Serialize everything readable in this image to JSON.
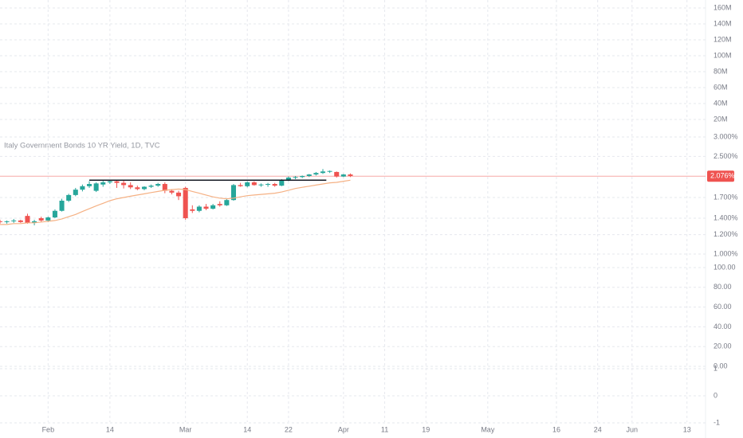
{
  "chart_data": {
    "type": "candlestick",
    "title": "Italy Government Bonds 10 YR Yield, 1D, TVC",
    "x": [
      -7,
      -6,
      -5,
      -4,
      -3,
      -2,
      -1,
      0,
      1,
      2,
      3,
      4,
      5,
      6,
      7,
      8,
      9,
      10,
      11,
      12,
      13,
      14,
      15,
      16,
      17,
      18,
      19,
      20,
      21,
      22,
      23,
      24,
      25,
      26,
      27,
      28,
      29,
      30,
      31,
      32,
      33,
      34,
      35,
      36,
      37,
      38,
      39,
      40,
      41,
      42,
      43,
      44
    ],
    "open": [
      1.36,
      1.35,
      1.36,
      1.37,
      1.43,
      1.34,
      1.4,
      1.37,
      1.41,
      1.5,
      1.65,
      1.74,
      1.83,
      1.89,
      1.81,
      1.92,
      1.96,
      1.98,
      1.95,
      1.91,
      1.87,
      1.84,
      1.88,
      1.9,
      1.93,
      1.81,
      1.78,
      1.86,
      1.52,
      1.5,
      1.56,
      1.53,
      1.6,
      1.58,
      1.66,
      1.91,
      1.89,
      1.96,
      1.91,
      1.92,
      1.93,
      1.9,
      2.0,
      2.05,
      2.06,
      2.08,
      2.11,
      2.14,
      2.17,
      2.16,
      2.07,
      2.11
    ],
    "high": [
      1.38,
      1.37,
      1.39,
      1.38,
      1.46,
      1.38,
      1.42,
      1.42,
      1.52,
      1.68,
      1.76,
      1.86,
      1.92,
      1.98,
      1.96,
      1.99,
      2.0,
      2.01,
      1.99,
      1.96,
      1.9,
      1.89,
      1.92,
      1.95,
      1.96,
      1.84,
      1.81,
      1.88,
      1.58,
      1.58,
      1.6,
      1.6,
      1.64,
      1.68,
      1.93,
      1.95,
      1.98,
      1.98,
      1.94,
      1.95,
      1.95,
      2.02,
      2.07,
      2.08,
      2.09,
      2.12,
      2.16,
      2.22,
      2.19,
      2.17,
      2.12,
      2.13
    ],
    "low": [
      1.33,
      1.33,
      1.34,
      1.34,
      1.33,
      1.31,
      1.35,
      1.35,
      1.4,
      1.49,
      1.63,
      1.72,
      1.8,
      1.86,
      1.79,
      1.88,
      1.93,
      1.86,
      1.85,
      1.84,
      1.82,
      1.82,
      1.86,
      1.88,
      1.77,
      1.75,
      1.66,
      1.38,
      1.47,
      1.48,
      1.51,
      1.52,
      1.56,
      1.57,
      1.65,
      1.88,
      1.87,
      1.9,
      1.88,
      1.88,
      1.88,
      1.89,
      1.98,
      2.02,
      2.04,
      2.06,
      2.09,
      2.12,
      2.14,
      2.05,
      2.06,
      2.06
    ],
    "close": [
      1.35,
      1.36,
      1.37,
      1.35,
      1.34,
      1.36,
      1.37,
      1.41,
      1.5,
      1.65,
      1.74,
      1.83,
      1.89,
      1.93,
      1.94,
      1.96,
      1.98,
      1.95,
      1.91,
      1.87,
      1.84,
      1.88,
      1.9,
      1.93,
      1.81,
      1.78,
      1.72,
      1.4,
      1.5,
      1.56,
      1.53,
      1.58,
      1.58,
      1.66,
      1.91,
      1.89,
      1.96,
      1.91,
      1.92,
      1.93,
      1.9,
      2.0,
      2.05,
      2.06,
      2.08,
      2.11,
      2.14,
      2.17,
      2.18,
      2.07,
      2.11,
      2.08
    ],
    "up_color": "#26a69a",
    "down_color": "#ef5350",
    "moving_average": {
      "color": "#f5b184",
      "values": [
        1.32,
        1.32,
        1.33,
        1.33,
        1.34,
        1.34,
        1.35,
        1.36,
        1.37,
        1.39,
        1.42,
        1.45,
        1.49,
        1.53,
        1.57,
        1.61,
        1.65,
        1.68,
        1.7,
        1.72,
        1.74,
        1.76,
        1.78,
        1.8,
        1.82,
        1.83,
        1.84,
        1.83,
        1.8,
        1.77,
        1.74,
        1.71,
        1.69,
        1.68,
        1.69,
        1.71,
        1.73,
        1.74,
        1.75,
        1.76,
        1.77,
        1.79,
        1.82,
        1.85,
        1.87,
        1.89,
        1.91,
        1.93,
        1.95,
        1.96,
        1.98,
        2.0
      ]
    },
    "level": {
      "value": 2.0,
      "x": [
        6,
        40.5
      ],
      "color": "#131722"
    },
    "current_price": {
      "value": 2.076,
      "label": "2.076%",
      "color": "#ef5350"
    },
    "xlim": [
      -7,
      95.7
    ],
    "xticks": [
      {
        "value": 0,
        "label": "Feb"
      },
      {
        "value": 9,
        "label": "14"
      },
      {
        "value": 20,
        "label": "Mar"
      },
      {
        "value": 29,
        "label": "14"
      },
      {
        "value": 35,
        "label": "22"
      },
      {
        "value": 43,
        "label": "Apr"
      },
      {
        "value": 49,
        "label": "11"
      },
      {
        "value": 55,
        "label": "19"
      },
      {
        "value": 64,
        "label": "May"
      },
      {
        "value": 74,
        "label": "16"
      },
      {
        "value": 80,
        "label": "24"
      },
      {
        "value": 85,
        "label": "Jun"
      },
      {
        "value": 93,
        "label": "13"
      }
    ],
    "ylim": [
      1.0,
      3.0
    ],
    "log_scale": true,
    "yticks": [
      {
        "value": 3.0,
        "label": "3.000%"
      },
      {
        "value": 2.5,
        "label": "2.500%"
      },
      {
        "value": 1.7,
        "label": "1.700%"
      },
      {
        "value": 1.4,
        "label": "1.400%"
      },
      {
        "value": 1.2,
        "label": "1.200%"
      },
      {
        "value": 1.0,
        "label": "1.000%"
      }
    ],
    "volume_scale": {
      "ylim": [
        0,
        160000000
      ],
      "yticks": [
        {
          "value": 160000000,
          "label": "160M"
        },
        {
          "value": 140000000,
          "label": "140M"
        },
        {
          "value": 120000000,
          "label": "120M"
        },
        {
          "value": 100000000,
          "label": "100M"
        },
        {
          "value": 80000000,
          "label": "80M"
        },
        {
          "value": 60000000,
          "label": "60M"
        },
        {
          "value": 40000000,
          "label": "40M"
        },
        {
          "value": 20000000,
          "label": "20M"
        }
      ]
    },
    "indicator_scale": {
      "ylim": [
        0,
        100
      ],
      "yticks": [
        {
          "value": 100,
          "label": "100.00"
        },
        {
          "value": 80,
          "label": "80.00"
        },
        {
          "value": 60,
          "label": "60.00"
        },
        {
          "value": 40,
          "label": "40.00"
        },
        {
          "value": 20,
          "label": "20.00"
        },
        {
          "value": 0,
          "label": "0.00"
        }
      ]
    },
    "oscillator_scale": {
      "ylim": [
        -1,
        1
      ],
      "yticks": [
        1,
        0,
        -1
      ]
    },
    "grid": true
  }
}
